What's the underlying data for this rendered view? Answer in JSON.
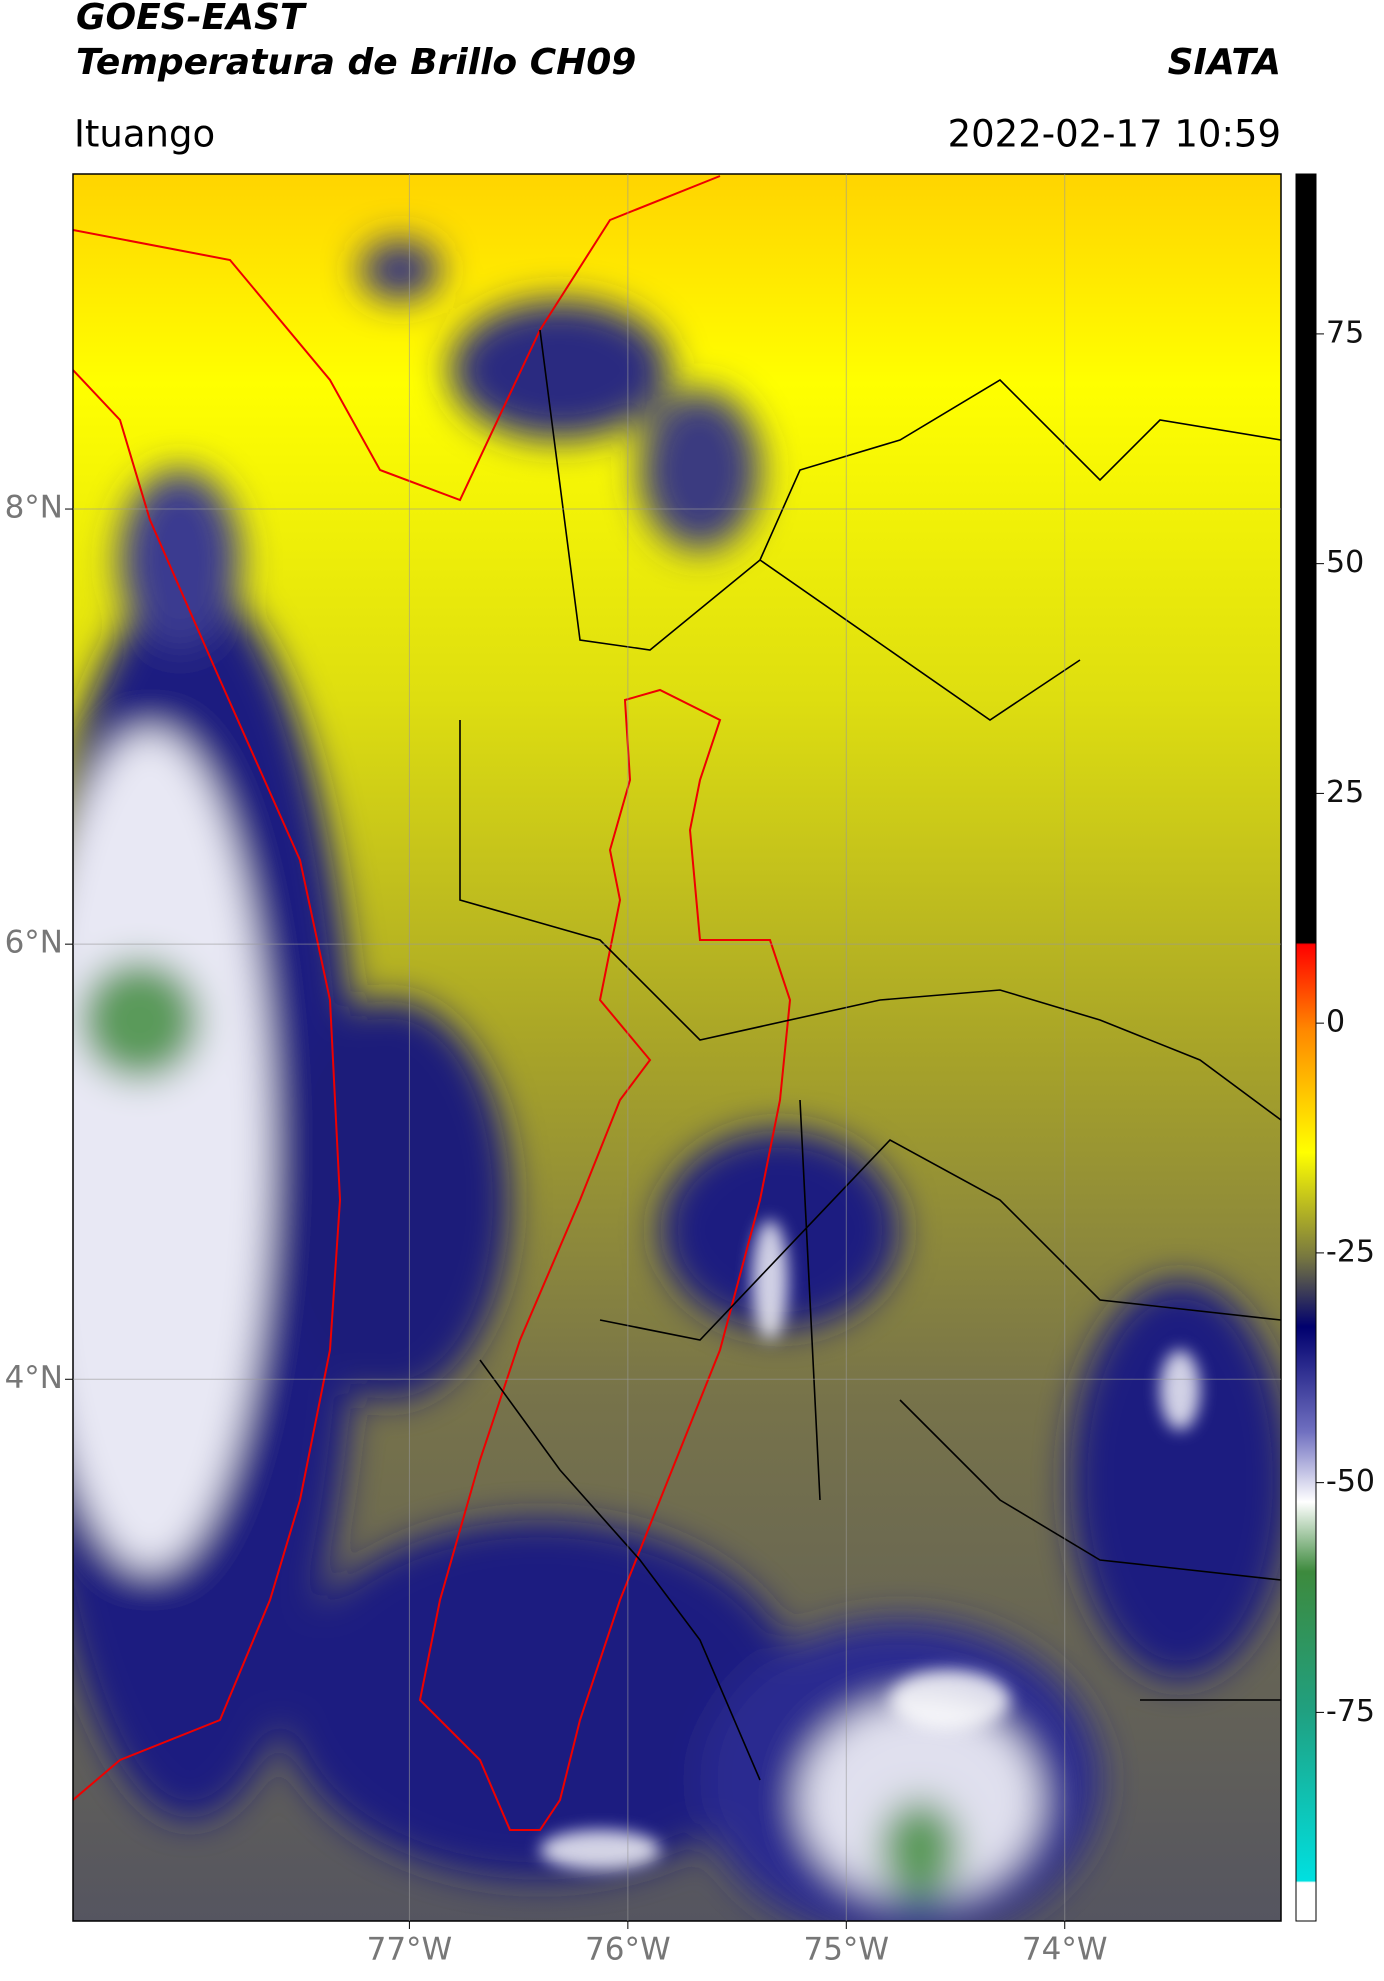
{
  "header": {
    "title": "GOES-EAST",
    "subtitle": "Temperatura de Brillo CH09",
    "source": "SIATA",
    "location": "Ituango",
    "timestamp": "2022-02-17 10:59"
  },
  "chart_data": {
    "type": "map",
    "xlim": [
      -78.54,
      -73.01
    ],
    "xticks": [
      {
        "value": -77,
        "label": "77°W"
      },
      {
        "value": -76,
        "label": "76°W"
      },
      {
        "value": -75,
        "label": "75°W"
      },
      {
        "value": -74,
        "label": "74°W"
      }
    ],
    "ylim": [
      1.51,
      9.54
    ],
    "yticks": [
      {
        "value": 4,
        "label": "4°N"
      },
      {
        "value": 6,
        "label": "6°N"
      },
      {
        "value": 8,
        "label": "8°N"
      }
    ],
    "grid": true,
    "colorbar": {
      "lim": [
        -97.7,
        92.4
      ],
      "ticks": [
        75,
        50,
        25,
        0,
        -25,
        -50,
        -75
      ]
    }
  }
}
